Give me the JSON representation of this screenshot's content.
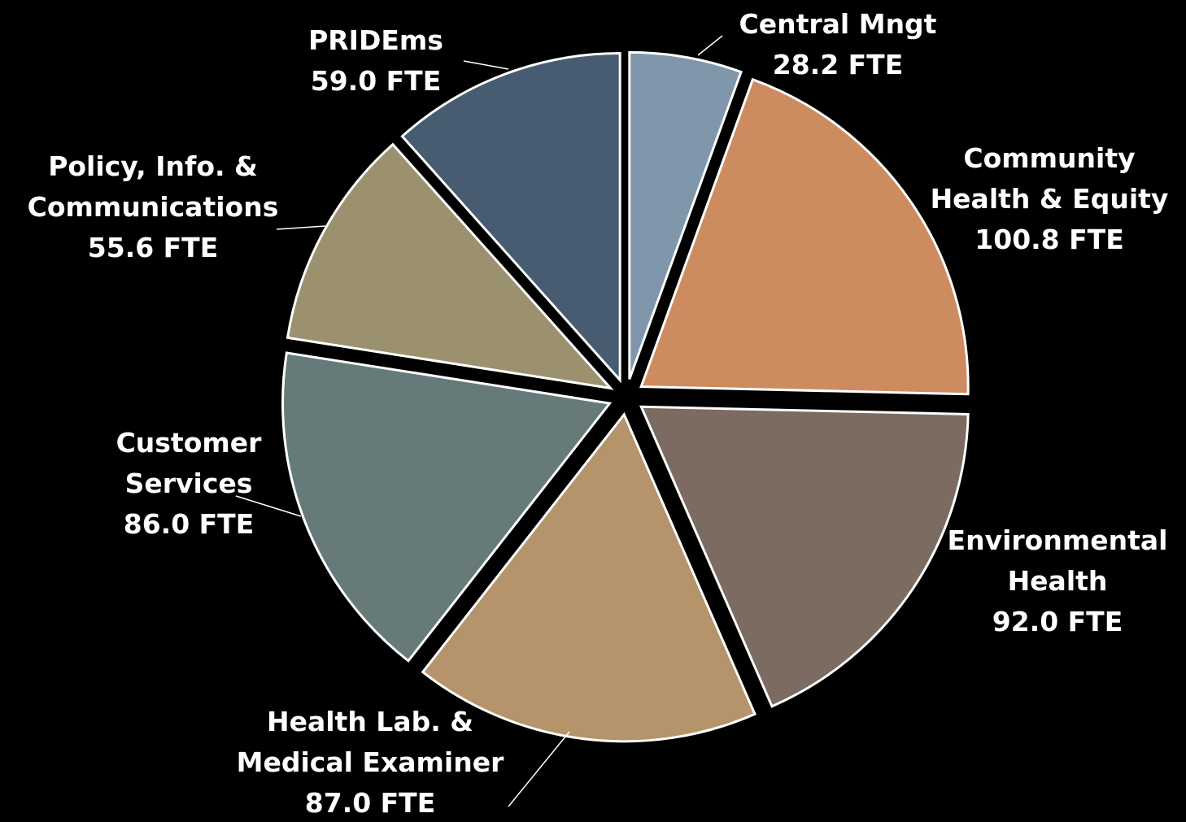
{
  "chart_data": {
    "type": "pie",
    "categories": [
      "Central Mngt",
      "Community Health & Equity",
      "Environmental Health",
      "Health Lab. & Medical Examiner",
      "Customer Services",
      "Policy, Info. & Communications",
      "PRIDEms"
    ],
    "values": [
      28.2,
      100.8,
      92.0,
      87.0,
      86.0,
      55.6,
      59.0
    ],
    "value_labels": [
      "28.2 FTE",
      "100.8 FTE",
      "92.0 FTE",
      "87.0 FTE",
      "86.0 FTE",
      "55.6 FTE",
      "59.0 FTE"
    ],
    "colors": [
      "#7f96ab",
      "#cd8c60",
      "#7b6b60",
      "#b5946b",
      "#667a7a",
      "#9c916f",
      "#475b71"
    ]
  }
}
